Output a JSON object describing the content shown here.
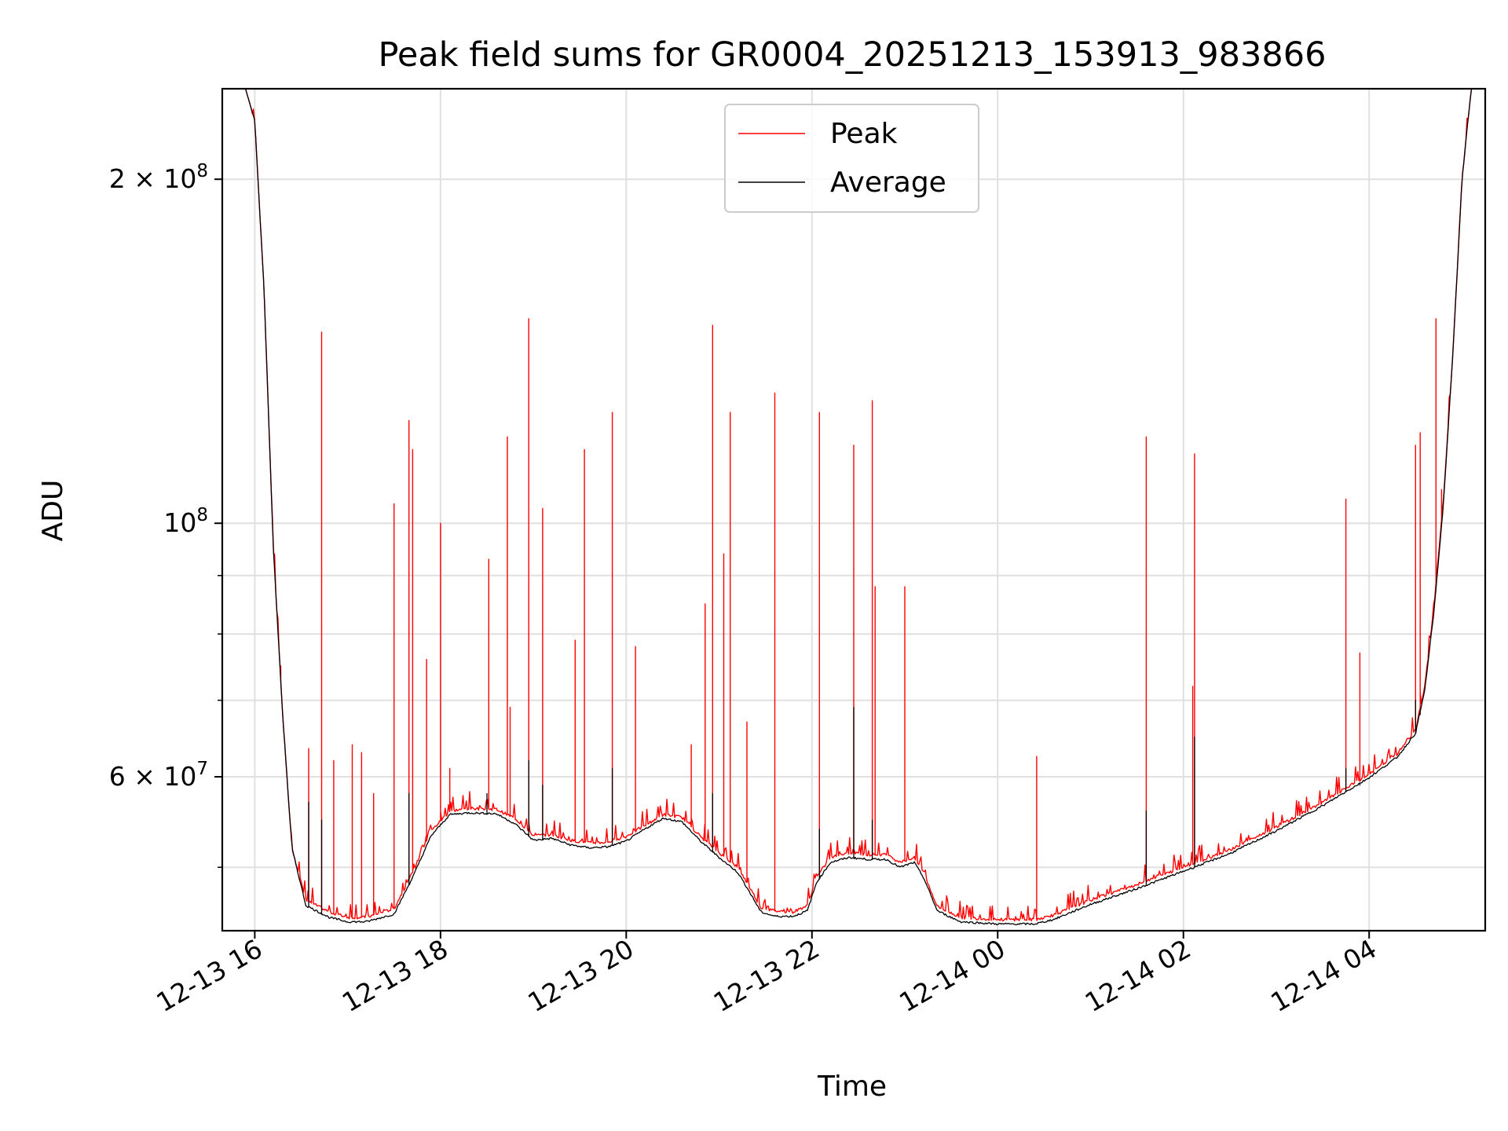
{
  "chart_data": {
    "type": "line",
    "title": "Peak field sums for GR0004_20251213_153913_983866",
    "xlabel": "Time",
    "ylabel": "ADU",
    "yscale": "log",
    "ylim": [
      44000000,
      240000000
    ],
    "xlim": [
      15.65,
      29.25
    ],
    "x_unit": "hours since 12-13 00:00",
    "grid": true,
    "legend_position": "top-center",
    "x_ticks": [
      {
        "value": 16,
        "label": "12-13 16"
      },
      {
        "value": 18,
        "label": "12-13 18"
      },
      {
        "value": 20,
        "label": "12-13 20"
      },
      {
        "value": 22,
        "label": "12-13 22"
      },
      {
        "value": 24,
        "label": "12-14 00"
      },
      {
        "value": 26,
        "label": "12-14 02"
      },
      {
        "value": 28,
        "label": "12-14 04"
      }
    ],
    "y_ticks": [
      {
        "value": 200000000,
        "mantissa": "2",
        "exponent": "8"
      },
      {
        "value": 100000000,
        "mantissa": "",
        "exponent": "8"
      },
      {
        "value": 60000000,
        "mantissa": "6",
        "exponent": "7"
      }
    ],
    "y_minor_ticks": [
      50000000,
      70000000,
      80000000,
      90000000
    ],
    "series": [
      {
        "name": "Peak",
        "color": "#ff0000",
        "baseline": [
          [
            15.65,
            240000000
          ],
          [
            15.9,
            240000000
          ],
          [
            16.0,
            225000000
          ],
          [
            16.1,
            160000000
          ],
          [
            16.2,
            95000000
          ],
          [
            16.3,
            68000000
          ],
          [
            16.4,
            52000000
          ],
          [
            16.55,
            46800000
          ],
          [
            16.8,
            45700000
          ],
          [
            17.0,
            45200000
          ],
          [
            17.2,
            45200000
          ],
          [
            17.5,
            46000000
          ],
          [
            17.7,
            49500000
          ],
          [
            17.9,
            53800000
          ],
          [
            18.1,
            56000000
          ],
          [
            18.3,
            56300000
          ],
          [
            18.6,
            56200000
          ],
          [
            18.8,
            55200000
          ],
          [
            19.0,
            53300000
          ],
          [
            19.2,
            53400000
          ],
          [
            19.4,
            52800000
          ],
          [
            19.6,
            52500000
          ],
          [
            19.8,
            52600000
          ],
          [
            20.0,
            53200000
          ],
          [
            20.2,
            54400000
          ],
          [
            20.4,
            55600000
          ],
          [
            20.6,
            55300000
          ],
          [
            20.8,
            53200000
          ],
          [
            21.0,
            51500000
          ],
          [
            21.2,
            50000000
          ],
          [
            21.3,
            48500000
          ],
          [
            21.45,
            46100000
          ],
          [
            21.6,
            45800000
          ],
          [
            21.8,
            45700000
          ],
          [
            21.95,
            46300000
          ],
          [
            22.05,
            49000000
          ],
          [
            22.2,
            51000000
          ],
          [
            22.4,
            51500000
          ],
          [
            22.6,
            51300000
          ],
          [
            22.8,
            51300000
          ],
          [
            22.95,
            50500000
          ],
          [
            23.1,
            51000000
          ],
          [
            23.2,
            49500000
          ],
          [
            23.35,
            46200000
          ],
          [
            23.6,
            45200000
          ],
          [
            24.0,
            45000000
          ],
          [
            24.4,
            45000000
          ],
          [
            24.6,
            45400000
          ],
          [
            25.0,
            46800000
          ],
          [
            25.5,
            48300000
          ],
          [
            26.0,
            50000000
          ],
          [
            26.5,
            51800000
          ],
          [
            27.0,
            54200000
          ],
          [
            27.5,
            57000000
          ],
          [
            28.0,
            60300000
          ],
          [
            28.3,
            62800000
          ],
          [
            28.5,
            66000000
          ],
          [
            28.6,
            72000000
          ],
          [
            28.7,
            85000000
          ],
          [
            28.8,
            105000000
          ],
          [
            28.9,
            140000000
          ],
          [
            29.0,
            200000000
          ],
          [
            29.1,
            240000000
          ],
          [
            29.25,
            240000000
          ]
        ],
        "spikes": [
          [
            16.28,
            75000000
          ],
          [
            16.58,
            63500000
          ],
          [
            16.72,
            147000000
          ],
          [
            16.85,
            62000000
          ],
          [
            17.05,
            64000000
          ],
          [
            17.15,
            63000000
          ],
          [
            17.28,
            58000000
          ],
          [
            17.5,
            104000000
          ],
          [
            17.66,
            123000000
          ],
          [
            17.7,
            116000000
          ],
          [
            17.85,
            76000000
          ],
          [
            18.0,
            100000000
          ],
          [
            18.1,
            61000000
          ],
          [
            18.52,
            93000000
          ],
          [
            18.72,
            119000000
          ],
          [
            18.75,
            69000000
          ],
          [
            18.95,
            151000000
          ],
          [
            19.1,
            103000000
          ],
          [
            19.45,
            79000000
          ],
          [
            19.55,
            116000000
          ],
          [
            19.85,
            125000000
          ],
          [
            20.1,
            78000000
          ],
          [
            20.7,
            64000000
          ],
          [
            20.85,
            85000000
          ],
          [
            20.93,
            149000000
          ],
          [
            21.05,
            94000000
          ],
          [
            21.12,
            125000000
          ],
          [
            21.3,
            67000000
          ],
          [
            21.6,
            130000000
          ],
          [
            22.08,
            125000000
          ],
          [
            22.45,
            117000000
          ],
          [
            22.65,
            128000000
          ],
          [
            22.68,
            88000000
          ],
          [
            23.0,
            88000000
          ],
          [
            24.42,
            62500000
          ],
          [
            25.6,
            119000000
          ],
          [
            26.12,
            115000000
          ],
          [
            26.1,
            72000000
          ],
          [
            27.75,
            105000000
          ],
          [
            27.9,
            77000000
          ],
          [
            28.5,
            117000000
          ],
          [
            28.55,
            120000000
          ],
          [
            28.72,
            151000000
          ],
          [
            28.78,
            107000000
          ]
        ]
      },
      {
        "name": "Average",
        "color": "#000000",
        "baseline": [
          [
            15.65,
            240000000
          ],
          [
            15.9,
            240000000
          ],
          [
            16.0,
            225000000
          ],
          [
            16.1,
            160000000
          ],
          [
            16.2,
            95000000
          ],
          [
            16.3,
            68000000
          ],
          [
            16.4,
            52000000
          ],
          [
            16.55,
            46300000
          ],
          [
            16.8,
            45200000
          ],
          [
            17.0,
            44800000
          ],
          [
            17.2,
            44800000
          ],
          [
            17.5,
            45500000
          ],
          [
            17.7,
            49000000
          ],
          [
            17.9,
            53300000
          ],
          [
            18.1,
            55600000
          ],
          [
            18.3,
            55800000
          ],
          [
            18.6,
            55700000
          ],
          [
            18.8,
            54600000
          ],
          [
            19.0,
            52800000
          ],
          [
            19.2,
            53000000
          ],
          [
            19.4,
            52300000
          ],
          [
            19.6,
            52000000
          ],
          [
            19.8,
            52100000
          ],
          [
            20.0,
            52700000
          ],
          [
            20.2,
            54000000
          ],
          [
            20.4,
            55200000
          ],
          [
            20.6,
            54800000
          ],
          [
            20.8,
            52700000
          ],
          [
            21.0,
            51000000
          ],
          [
            21.2,
            49500000
          ],
          [
            21.3,
            48000000
          ],
          [
            21.45,
            45700000
          ],
          [
            21.6,
            45300000
          ],
          [
            21.8,
            45300000
          ],
          [
            21.95,
            45800000
          ],
          [
            22.05,
            48500000
          ],
          [
            22.2,
            50500000
          ],
          [
            22.4,
            51000000
          ],
          [
            22.6,
            50800000
          ],
          [
            22.8,
            50800000
          ],
          [
            22.95,
            50000000
          ],
          [
            23.1,
            50500000
          ],
          [
            23.2,
            49000000
          ],
          [
            23.35,
            45800000
          ],
          [
            23.6,
            44800000
          ],
          [
            24.0,
            44600000
          ],
          [
            24.4,
            44600000
          ],
          [
            24.6,
            45000000
          ],
          [
            25.0,
            46400000
          ],
          [
            25.5,
            47900000
          ],
          [
            26.0,
            49600000
          ],
          [
            26.5,
            51400000
          ],
          [
            27.0,
            53800000
          ],
          [
            27.5,
            56600000
          ],
          [
            28.0,
            59900000
          ],
          [
            28.3,
            62400000
          ],
          [
            28.5,
            65500000
          ],
          [
            28.6,
            71500000
          ],
          [
            28.7,
            84000000
          ],
          [
            28.8,
            104000000
          ],
          [
            28.9,
            140000000
          ],
          [
            29.0,
            200000000
          ],
          [
            29.1,
            240000000
          ],
          [
            29.25,
            240000000
          ]
        ],
        "spikes": [
          [
            16.58,
            57000000
          ],
          [
            16.72,
            55000000
          ],
          [
            17.66,
            58000000
          ],
          [
            18.5,
            58000000
          ],
          [
            18.95,
            62000000
          ],
          [
            19.1,
            59000000
          ],
          [
            19.85,
            61000000
          ],
          [
            20.93,
            58000000
          ],
          [
            22.08,
            54000000
          ],
          [
            22.45,
            69000000
          ],
          [
            22.65,
            55000000
          ],
          [
            25.6,
            56000000
          ],
          [
            26.12,
            65000000
          ],
          [
            27.75,
            61000000
          ],
          [
            27.9,
            59000000
          ],
          [
            28.5,
            70000000
          ],
          [
            28.55,
            68000000
          ]
        ]
      }
    ]
  }
}
